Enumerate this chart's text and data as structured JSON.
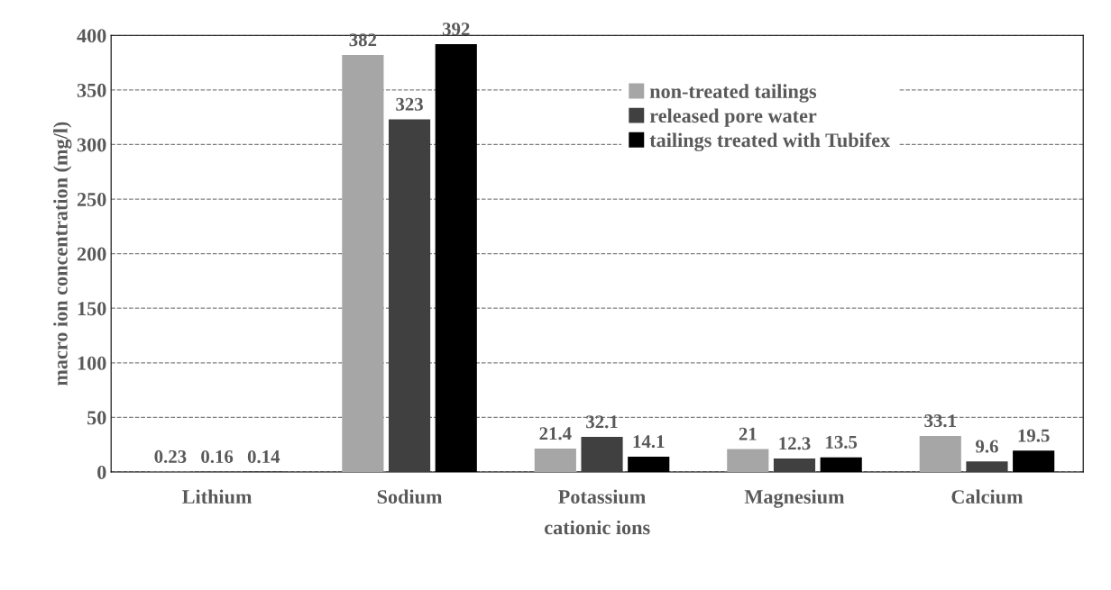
{
  "chart_data": {
    "type": "bar",
    "xlabel": "cationic ions",
    "ylabel": "macro ion concentration (mg/l)",
    "categories": [
      "Lithium",
      "Sodium",
      "Potassium",
      "Magnesium",
      "Calcium"
    ],
    "series": [
      {
        "name": "non-treated tailings",
        "color": "#a6a6a6",
        "values": [
          0.23,
          382,
          21.4,
          21,
          33.1
        ]
      },
      {
        "name": "released pore water",
        "color": "#404040",
        "values": [
          0.16,
          323,
          32.1,
          12.3,
          9.6
        ]
      },
      {
        "name": "tailings treated with Tubifex",
        "color": "#000000",
        "values": [
          0.14,
          392,
          14.1,
          13.5,
          19.5
        ]
      }
    ],
    "ylim": [
      0,
      400
    ],
    "yticks": [
      0,
      50,
      100,
      150,
      200,
      250,
      300,
      350,
      400
    ],
    "grid": "y",
    "legend": "top right",
    "data_labels": true
  }
}
